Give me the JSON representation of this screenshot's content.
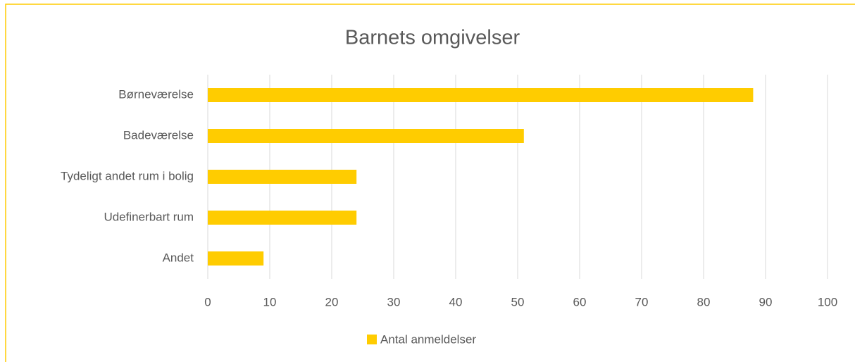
{
  "chart_data": {
    "type": "bar",
    "orientation": "horizontal",
    "title": "Barnets omgivelser",
    "categories": [
      "Børneværelse",
      "Badeværelse",
      "Tydeligt andet rum i bolig",
      "Udefinerbart rum",
      "Andet"
    ],
    "series": [
      {
        "name": "Antal anmeldelser",
        "color": "#ffcc00",
        "values": [
          88,
          51,
          24,
          24,
          9
        ]
      }
    ],
    "xlim": [
      0,
      100
    ],
    "xticks": [
      0,
      10,
      20,
      30,
      40,
      50,
      60,
      70,
      80,
      90,
      100
    ],
    "grid": true,
    "legend": "bottom"
  }
}
